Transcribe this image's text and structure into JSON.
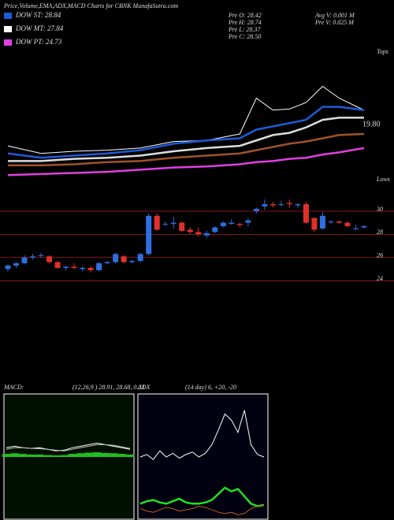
{
  "header": {
    "title": "Price,Volume,EMA,ADX,MACD Charts for CBNK MunafaSutra.com",
    "legend": [
      {
        "label": "DOW ST: 28.84",
        "color": "#1e5bd8"
      },
      {
        "label": "DOW MT: 27.84",
        "color": "#ffffff"
      },
      {
        "label": "DOW PT: 24.73",
        "color": "#e040e0"
      }
    ],
    "info": [
      "Pre  O: 28.42",
      "Pre  H: 28.74",
      "Pre  L: 28.37",
      "Pre  C: 28.50",
      "Avg V: 0.001 M",
      "Pre  V: 0.025 M"
    ]
  },
  "chart_data": [
    {
      "type": "line",
      "annotations": [
        "Tops",
        "Lows",
        "19.80"
      ],
      "x": [
        0,
        4,
        8,
        12,
        16,
        20,
        24,
        28,
        30,
        32,
        34,
        36,
        38,
        40,
        43
      ],
      "xlim": [
        0,
        43
      ],
      "ylim": [
        20,
        32
      ],
      "series": [
        {
          "name": "Price",
          "color": "#ffffff",
          "values": [
            22.9,
            22.2,
            22.4,
            22.5,
            22.7,
            23.3,
            23.4,
            24.0,
            27.3,
            26.2,
            26.3,
            26.9,
            28.4,
            27.3,
            26.2
          ]
        },
        {
          "name": "EMA short",
          "color": "#1e5bd8",
          "values": [
            22.2,
            21.8,
            22.0,
            22.2,
            22.5,
            23.1,
            23.4,
            23.6,
            24.4,
            24.7,
            25.0,
            25.3,
            26.5,
            26.5,
            26.2
          ]
        },
        {
          "name": "EMA mid",
          "color": "#dddddd",
          "values": [
            21.5,
            21.5,
            21.7,
            21.8,
            22.0,
            22.4,
            22.7,
            22.9,
            23.4,
            23.9,
            24.1,
            24.6,
            25.3,
            25.5,
            25.5
          ]
        },
        {
          "name": "EMA long",
          "color": "#a0522d",
          "values": [
            21.1,
            21.1,
            21.2,
            21.4,
            21.5,
            21.8,
            22.0,
            22.2,
            22.5,
            22.8,
            23.1,
            23.3,
            23.6,
            23.9,
            24.0
          ]
        },
        {
          "name": "EMA very long",
          "color": "#e040e0",
          "values": [
            20.2,
            20.3,
            20.4,
            20.5,
            20.7,
            20.9,
            21.0,
            21.2,
            21.4,
            21.5,
            21.7,
            21.8,
            22.1,
            22.3,
            22.7
          ]
        }
      ]
    },
    {
      "type": "candlestick",
      "up_color": "#2f6fe0",
      "down_color": "#e0302a",
      "ylim": [
        23.4,
        31.7
      ],
      "yticks": [
        24,
        26,
        28,
        30
      ],
      "grid": true,
      "open": [
        25.0,
        25.3,
        25.5,
        26.0,
        26.2,
        26.1,
        25.6,
        25.1,
        25.2,
        25.0,
        25.1,
        24.9,
        25.5,
        25.6,
        26.1,
        25.6,
        25.7,
        26.3,
        29.6,
        28.9,
        28.9,
        29.0,
        28.4,
        28.2,
        27.9,
        28.2,
        28.7,
        28.9,
        28.9,
        29.0,
        30.0,
        30.4,
        30.6,
        30.6,
        30.7,
        30.5,
        30.6,
        29.4,
        28.5,
        29.1,
        29.1,
        29.0,
        28.5,
        28.6
      ],
      "high": [
        25.4,
        25.6,
        26.2,
        26.3,
        26.4,
        26.2,
        25.7,
        25.3,
        25.5,
        25.2,
        25.3,
        25.6,
        25.7,
        26.4,
        26.2,
        25.8,
        26.4,
        29.8,
        29.8,
        29.1,
        29.5,
        29.1,
        28.6,
        28.6,
        28.3,
        28.7,
        29.1,
        29.3,
        29.0,
        29.4,
        30.3,
        31.0,
        30.8,
        30.9,
        31.0,
        30.7,
        30.8,
        29.5,
        29.9,
        29.2,
        29.2,
        29.1,
        28.8,
        28.8
      ],
      "low": [
        24.8,
        25.1,
        25.4,
        25.8,
        26.0,
        25.5,
        25.0,
        24.9,
        25.0,
        24.8,
        24.7,
        24.8,
        25.4,
        25.5,
        25.5,
        25.5,
        25.6,
        26.2,
        28.3,
        28.7,
        28.5,
        28.2,
        28.0,
        27.8,
        27.7,
        28.1,
        28.6,
        28.8,
        28.6,
        28.7,
        29.8,
        30.1,
        30.3,
        30.4,
        30.3,
        30.3,
        28.9,
        28.2,
        28.4,
        28.9,
        28.9,
        28.6,
        28.4,
        28.5
      ],
      "close": [
        25.3,
        25.5,
        26.0,
        26.1,
        26.2,
        25.6,
        25.1,
        25.2,
        25.1,
        25.1,
        24.9,
        25.5,
        25.6,
        26.3,
        25.6,
        25.7,
        26.3,
        29.6,
        28.4,
        28.9,
        29.0,
        28.3,
        28.2,
        28.0,
        28.1,
        28.6,
        29.0,
        29.0,
        28.8,
        29.2,
        30.2,
        30.6,
        30.5,
        30.6,
        30.6,
        30.6,
        29.0,
        28.4,
        29.6,
        29.1,
        29.0,
        28.7,
        28.5,
        28.7
      ]
    },
    {
      "type": "macd",
      "label": "MACD:",
      "params": "(12,26,9 ) 28.91, 28.68, 0.23",
      "ylim": [
        -2,
        2
      ],
      "histogram": {
        "color": "#22c022",
        "values": [
          0.1,
          0.12,
          0.1,
          0.08,
          0.08,
          0.06,
          0.05,
          0.06,
          0.1,
          0.12,
          0.14,
          0.15,
          0.13,
          0.12,
          0.1,
          0.08
        ]
      },
      "series": [
        {
          "name": "MACD",
          "color": "#ffffff",
          "values": [
            0.3,
            0.35,
            0.3,
            0.28,
            0.3,
            0.25,
            0.2,
            0.22,
            0.3,
            0.35,
            0.4,
            0.45,
            0.4,
            0.35,
            0.3,
            0.25
          ]
        },
        {
          "name": "Signal",
          "color": "#bbbbbb",
          "values": [
            0.25,
            0.3,
            0.3,
            0.28,
            0.27,
            0.25,
            0.22,
            0.2,
            0.25,
            0.3,
            0.35,
            0.4,
            0.4,
            0.38,
            0.33,
            0.28
          ]
        }
      ]
    },
    {
      "type": "adx",
      "label": "ADX",
      "params": "(14 day) 6, +20, -20",
      "ylim": [
        0,
        100
      ],
      "series": [
        {
          "name": "ADX",
          "color": "#ffffff",
          "values": [
            50,
            52,
            48,
            55,
            50,
            53,
            49,
            52,
            54,
            50,
            53,
            60,
            72,
            85,
            80,
            70,
            88,
            60,
            52,
            50
          ]
        },
        {
          "name": "+DI",
          "color": "#22e022",
          "values": [
            12,
            14,
            15,
            13,
            12,
            14,
            16,
            13,
            12,
            12,
            13,
            15,
            20,
            25,
            22,
            24,
            18,
            12,
            10,
            11
          ]
        },
        {
          "name": "-DI",
          "color": "#c06020",
          "values": [
            8,
            6,
            5,
            7,
            9,
            8,
            6,
            7,
            8,
            10,
            9,
            7,
            5,
            4,
            5,
            3,
            4,
            8,
            10,
            11
          ]
        }
      ]
    }
  ]
}
